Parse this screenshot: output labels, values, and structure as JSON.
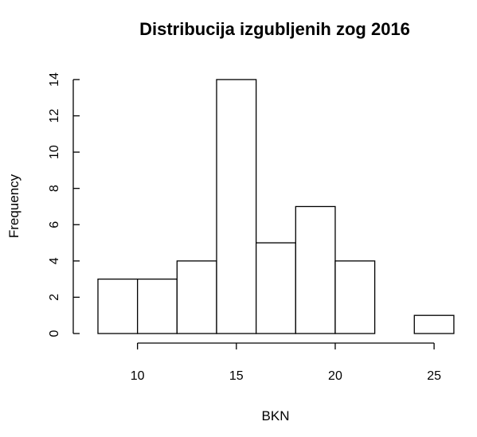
{
  "chart_data": {
    "type": "bar",
    "title": "Distribucija izgubljenih zog 2016",
    "xlabel": "BKN",
    "ylabel": "Frequency",
    "bins": [
      {
        "from": 8,
        "to": 10,
        "count": 3
      },
      {
        "from": 10,
        "to": 12,
        "count": 3
      },
      {
        "from": 12,
        "to": 14,
        "count": 4
      },
      {
        "from": 14,
        "to": 16,
        "count": 14
      },
      {
        "from": 16,
        "to": 18,
        "count": 5
      },
      {
        "from": 18,
        "to": 20,
        "count": 7
      },
      {
        "from": 20,
        "to": 22,
        "count": 4
      },
      {
        "from": 22,
        "to": 24,
        "count": 0
      },
      {
        "from": 24,
        "to": 26,
        "count": 1
      }
    ],
    "xlim": [
      8,
      26
    ],
    "ylim": [
      0,
      14
    ],
    "x_ticks": [
      10,
      15,
      20,
      25
    ],
    "y_ticks": [
      0,
      2,
      4,
      6,
      8,
      10,
      12,
      14
    ],
    "grid": false,
    "colors": {
      "bar_fill": "#ffffff",
      "bar_stroke": "#000000"
    }
  }
}
